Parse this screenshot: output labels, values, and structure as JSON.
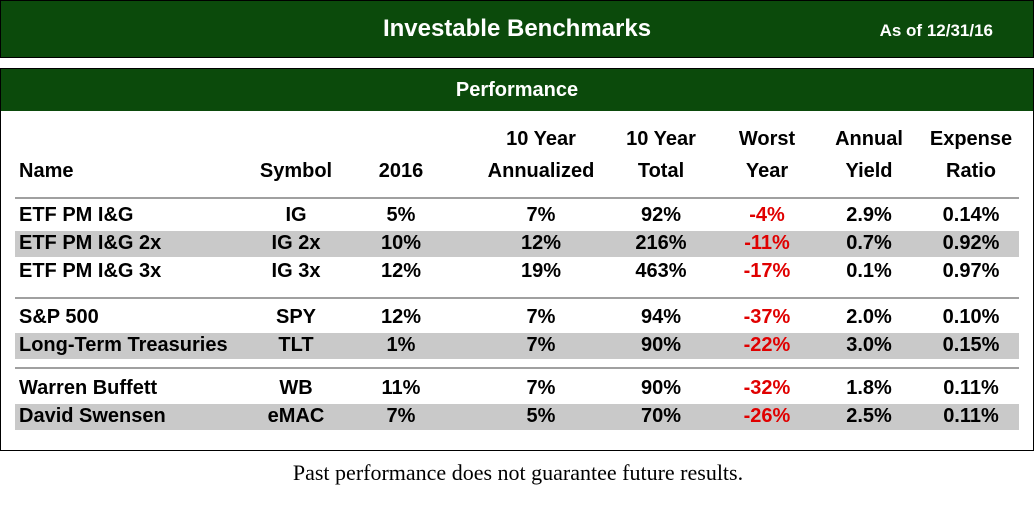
{
  "header": {
    "title": "Investable Benchmarks",
    "as_of": "As of 12/31/16"
  },
  "section": {
    "title": "Performance"
  },
  "columns": {
    "name": "Name",
    "symbol": "Symbol",
    "y2016": "2016",
    "ten_ann_1": "10 Year",
    "ten_ann_2": "Annualized",
    "ten_tot_1": "10 Year",
    "ten_tot_2": "Total",
    "worst_1": "Worst",
    "worst_2": "Year",
    "yield_1": "Annual",
    "yield_2": "Yield",
    "expense_1": "Expense",
    "expense_2": "Ratio"
  },
  "rows": [
    {
      "name": "ETF PM I&G",
      "symbol": "IG",
      "y2016": "5%",
      "ten_ann": "7%",
      "ten_tot": "92%",
      "worst": "-4%",
      "yield": "2.9%",
      "expense": "0.14%"
    },
    {
      "name": "ETF PM I&G 2x",
      "symbol": "IG 2x",
      "y2016": "10%",
      "ten_ann": "12%",
      "ten_tot": "216%",
      "worst": "-11%",
      "yield": "0.7%",
      "expense": "0.92%"
    },
    {
      "name": "ETF PM I&G 3x",
      "symbol": "IG 3x",
      "y2016": "12%",
      "ten_ann": "19%",
      "ten_tot": "463%",
      "worst": "-17%",
      "yield": "0.1%",
      "expense": "0.97%"
    },
    {
      "name": "S&P 500",
      "symbol": "SPY",
      "y2016": "12%",
      "ten_ann": "7%",
      "ten_tot": "94%",
      "worst": "-37%",
      "yield": "2.0%",
      "expense": "0.10%"
    },
    {
      "name": "Long-Term Treasuries",
      "symbol": "TLT",
      "y2016": "1%",
      "ten_ann": "7%",
      "ten_tot": "90%",
      "worst": "-22%",
      "yield": "3.0%",
      "expense": "0.15%"
    },
    {
      "name": "Warren Buffett",
      "symbol": "WB",
      "y2016": "11%",
      "ten_ann": "7%",
      "ten_tot": "90%",
      "worst": "-32%",
      "yield": "1.8%",
      "expense": "0.11%"
    },
    {
      "name": "David Swensen",
      "symbol": "eMAC",
      "y2016": "7%",
      "ten_ann": "5%",
      "ten_tot": "70%",
      "worst": "-26%",
      "yield": "2.5%",
      "expense": "0.11%"
    }
  ],
  "colors": {
    "header_green": "#0b4a0b",
    "negative_red": "#e00000",
    "row_shade": "#c9c9c9"
  },
  "footer": {
    "disclaimer": "Past performance does not guarantee future results."
  }
}
